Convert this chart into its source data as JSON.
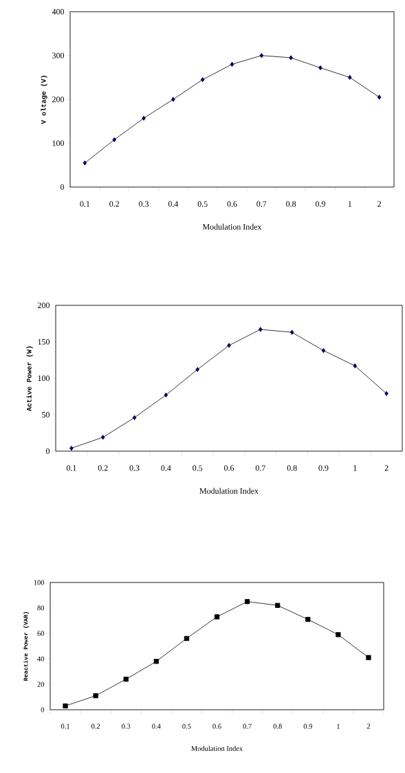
{
  "chart_data": [
    {
      "type": "line",
      "categories": [
        "0.1",
        "0.2",
        "0.3",
        "0.4",
        "0.5",
        "0.6",
        "0.7",
        "0.8",
        "0.9",
        "1",
        "2"
      ],
      "values": [
        55,
        108,
        157,
        200,
        245,
        280,
        300,
        295,
        272,
        250,
        205
      ],
      "color": "#000066",
      "marker": "diamond",
      "xlabel": "Modulation Index",
      "ylabel": "V oltage (V)",
      "ylim": [
        0,
        400
      ],
      "yticks": [
        0,
        100,
        200,
        300,
        400
      ]
    },
    {
      "type": "line",
      "categories": [
        "0.1",
        "0.2",
        "0.3",
        "0.4",
        "0.5",
        "0.6",
        "0.7",
        "0.8",
        "0.9",
        "1",
        "2"
      ],
      "values": [
        4,
        19,
        46,
        77,
        112,
        145,
        167,
        163,
        138,
        117,
        79
      ],
      "color": "#000066",
      "marker": "diamond",
      "xlabel": "Modulation Index",
      "ylabel": "Active Power (W)",
      "ylim": [
        0,
        200
      ],
      "yticks": [
        0,
        50,
        100,
        150,
        200
      ]
    },
    {
      "type": "line",
      "categories": [
        "0.1",
        "0.2",
        "0.3",
        "0.4",
        "0.5",
        "0.6",
        "0.7",
        "0.8",
        "0.9",
        "1",
        "2"
      ],
      "values": [
        3,
        11,
        24,
        38,
        56,
        73,
        85,
        82,
        71,
        59,
        41
      ],
      "color": "#000000",
      "marker": "square",
      "xlabel": "Modulation Index",
      "ylabel": "Reactive Power (VAR)",
      "ylim": [
        0,
        100
      ],
      "yticks": [
        0,
        20,
        40,
        60,
        80,
        100
      ]
    }
  ]
}
